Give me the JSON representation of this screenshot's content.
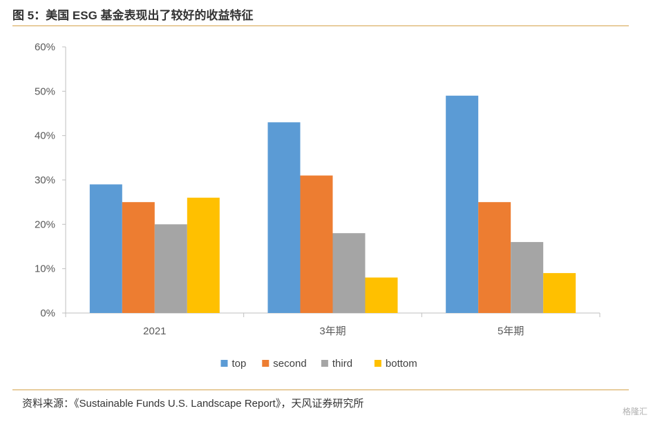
{
  "header": {
    "title": "图 5：美国  ESG 基金表现出了较好的收益特征"
  },
  "footer": {
    "source": "资料来源：《Sustainable Funds U.S. Landscape Report》，天风证券研究所"
  },
  "watermark": {
    "text": "格隆汇"
  },
  "chart_data": {
    "type": "bar",
    "categories": [
      "2021",
      "3年期",
      "5年期"
    ],
    "series": [
      {
        "name": "top",
        "values": [
          29,
          43,
          49
        ],
        "color": "#5b9bd5"
      },
      {
        "name": "second",
        "values": [
          25,
          31,
          25
        ],
        "color": "#ed7d31"
      },
      {
        "name": "third",
        "values": [
          20,
          18,
          16
        ],
        "color": "#a5a5a5"
      },
      {
        "name": "bottom",
        "values": [
          26,
          8,
          9
        ],
        "color": "#ffc000"
      }
    ],
    "ylim": [
      0,
      60
    ],
    "yticks": [
      "0%",
      "10%",
      "20%",
      "30%",
      "40%",
      "50%",
      "60%"
    ],
    "grid": false,
    "legend": "bottom"
  }
}
